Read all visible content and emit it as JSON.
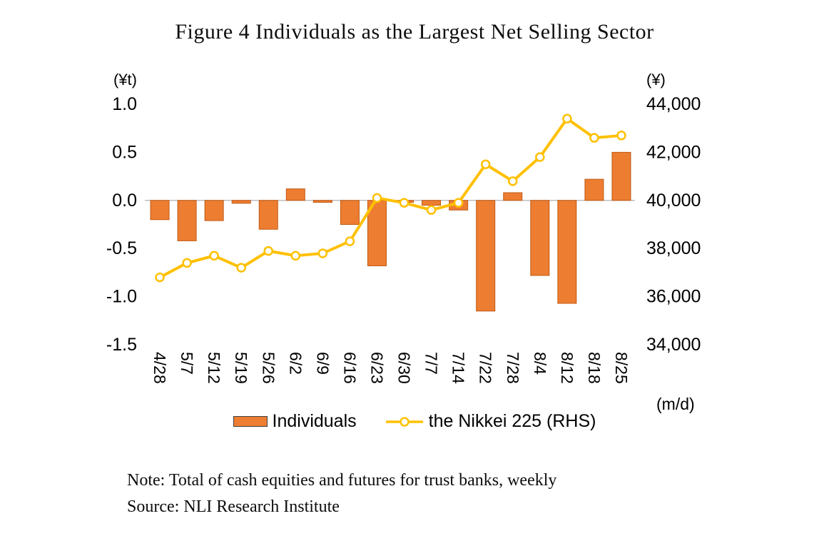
{
  "title": "Figure 4 Individuals as the Largest Net Selling Sector",
  "chart_data": {
    "type": "bar",
    "subtype": "combo-bar-line",
    "categories": [
      "4/28",
      "5/7",
      "5/12",
      "5/19",
      "5/26",
      "6/2",
      "6/9",
      "6/16",
      "6/23",
      "6/30",
      "7/7",
      "7/14",
      "7/22",
      "7/28",
      "8/4",
      "8/12",
      "8/18",
      "8/25"
    ],
    "series": [
      {
        "name": "Individuals",
        "type": "bar",
        "axis": "left",
        "color": "#ED7D31",
        "border_color": "#C05A14",
        "values": [
          -0.2,
          -0.42,
          -0.21,
          -0.03,
          -0.3,
          0.12,
          -0.02,
          -0.25,
          -0.68,
          -0.02,
          -0.05,
          -0.1,
          -1.15,
          0.08,
          -0.78,
          -1.07,
          0.22,
          0.5
        ]
      },
      {
        "name": "the Nikkei 225 (RHS)",
        "type": "line",
        "axis": "right",
        "color": "#FFC000",
        "marker": "circle-open",
        "values": [
          36800,
          37400,
          37700,
          37200,
          37900,
          37700,
          37800,
          38300,
          40100,
          39900,
          39600,
          39900,
          41500,
          40800,
          41800,
          43400,
          42600,
          42700
        ]
      }
    ],
    "left_axis": {
      "unit": "(¥t)",
      "min": -1.5,
      "max": 1.0,
      "ticks": [
        1.0,
        0.5,
        0.0,
        -0.5,
        -1.0,
        -1.5
      ],
      "tick_labels": [
        "1.0",
        "0.5",
        "0.0",
        "-0.5",
        "-1.0",
        "-1.5"
      ]
    },
    "right_axis": {
      "unit": "(¥)",
      "min": 34000,
      "max": 44000,
      "ticks": [
        44000,
        42000,
        40000,
        38000,
        36000,
        34000
      ],
      "tick_labels": [
        "44,000",
        "42,000",
        "40,000",
        "38,000",
        "36,000",
        "34,000"
      ]
    },
    "x_axis_unit": "(m/d)",
    "grid": "zero-line-only",
    "legend_position": "bottom"
  },
  "note": "Note: Total of cash equities and futures for trust banks, weekly",
  "source": "Source: NLI Research Institute"
}
